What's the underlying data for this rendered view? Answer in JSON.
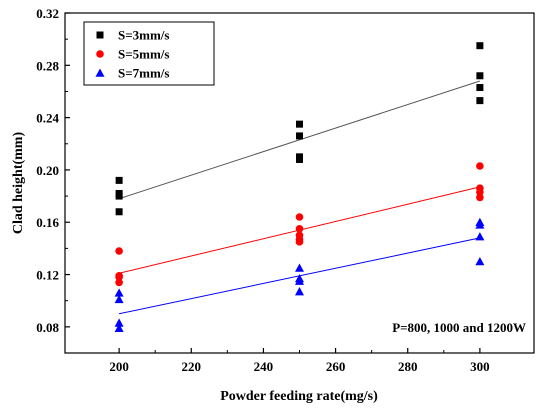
{
  "chart_data": {
    "type": "scatter",
    "xlabel": "Powder feeding rate(mg/s)",
    "ylabel": "Clad height(mm)",
    "xlim": [
      185,
      315
    ],
    "ylim": [
      0.06,
      0.32
    ],
    "x_ticks": [
      200,
      220,
      240,
      260,
      280,
      300
    ],
    "y_ticks": [
      0.08,
      0.12,
      0.16,
      0.2,
      0.24,
      0.28,
      0.32
    ],
    "y_tick_labels": [
      "0.08",
      "0.12",
      "0.16",
      "0.20",
      "0.24",
      "0.28",
      "0.32"
    ],
    "grid": false,
    "legend_position": "top-left",
    "annotation": "P=800, 1000 and 1200W",
    "series": [
      {
        "name": "S=3mm/s",
        "marker": "square",
        "color": "#000000",
        "line_color": "#555555",
        "points": [
          [
            200,
            0.192
          ],
          [
            200,
            0.182
          ],
          [
            200,
            0.18
          ],
          [
            200,
            0.168
          ],
          [
            250,
            0.235
          ],
          [
            250,
            0.226
          ],
          [
            250,
            0.21
          ],
          [
            250,
            0.208
          ],
          [
            300,
            0.295
          ],
          [
            300,
            0.272
          ],
          [
            300,
            0.263
          ],
          [
            300,
            0.253
          ]
        ],
        "fit": [
          [
            200,
            0.178
          ],
          [
            300,
            0.268
          ]
        ]
      },
      {
        "name": "S=5mm/s",
        "marker": "circle",
        "color": "#ff0000",
        "line_color": "#ff0000",
        "points": [
          [
            200,
            0.138
          ],
          [
            200,
            0.119
          ],
          [
            200,
            0.118
          ],
          [
            200,
            0.114
          ],
          [
            250,
            0.164
          ],
          [
            250,
            0.155
          ],
          [
            250,
            0.15
          ],
          [
            250,
            0.147
          ],
          [
            250,
            0.145
          ],
          [
            300,
            0.203
          ],
          [
            300,
            0.186
          ],
          [
            300,
            0.183
          ],
          [
            300,
            0.179
          ]
        ],
        "fit": [
          [
            200,
            0.121
          ],
          [
            300,
            0.187
          ]
        ]
      },
      {
        "name": "S=7mm/s",
        "marker": "triangle",
        "color": "#0000ff",
        "line_color": "#0000ff",
        "points": [
          [
            200,
            0.106
          ],
          [
            200,
            0.101
          ],
          [
            200,
            0.083
          ],
          [
            200,
            0.079
          ],
          [
            250,
            0.125
          ],
          [
            250,
            0.117
          ],
          [
            250,
            0.115
          ],
          [
            250,
            0.107
          ],
          [
            300,
            0.16
          ],
          [
            300,
            0.158
          ],
          [
            300,
            0.149
          ],
          [
            300,
            0.13
          ]
        ],
        "fit": [
          [
            200,
            0.09
          ],
          [
            300,
            0.148
          ]
        ]
      }
    ]
  }
}
